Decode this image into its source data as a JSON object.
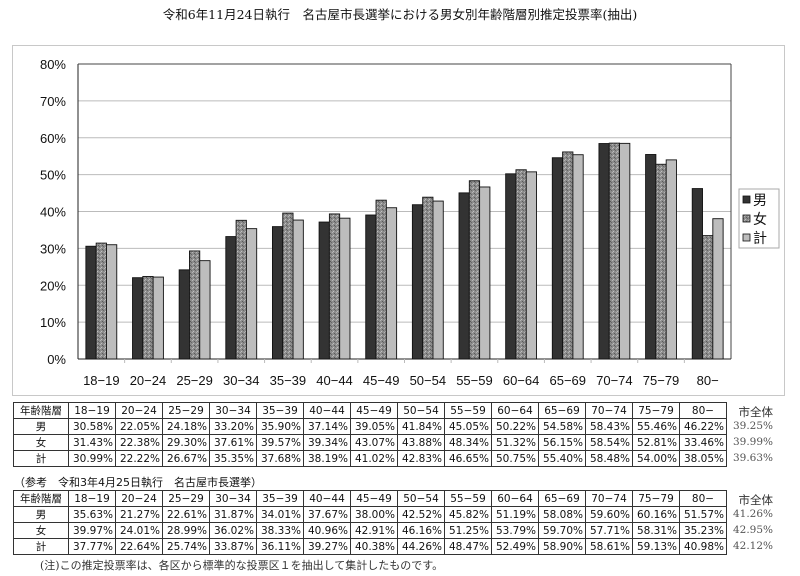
{
  "title": "令和6年11月24日執行　名古屋市長選挙における男女別年齢階層別推定投票率(抽出)",
  "chart_data": {
    "type": "bar",
    "title": "令和6年11月24日執行　名古屋市長選挙における男女別年齢階層別推定投票率(抽出)",
    "categories": [
      "18-19",
      "20-24",
      "25-29",
      "30-34",
      "35-39",
      "40-44",
      "45-49",
      "50-54",
      "55-59",
      "60-64",
      "65-69",
      "70-74",
      "75-79",
      "80-"
    ],
    "series": [
      {
        "name": "男",
        "color": "#333333",
        "values": [
          30.58,
          22.05,
          24.18,
          33.2,
          35.9,
          37.14,
          39.05,
          41.84,
          45.05,
          50.22,
          54.58,
          58.43,
          55.46,
          46.22
        ]
      },
      {
        "name": "女",
        "color": "#8c8c8c",
        "values": [
          31.43,
          22.38,
          29.3,
          37.61,
          39.57,
          39.34,
          43.07,
          43.88,
          48.34,
          51.32,
          56.15,
          58.54,
          52.81,
          33.46
        ]
      },
      {
        "name": "計",
        "color": "#bdbdbd",
        "values": [
          30.99,
          22.22,
          26.67,
          35.35,
          37.68,
          38.19,
          41.02,
          42.83,
          46.65,
          50.75,
          55.4,
          58.48,
          54.0,
          38.05
        ]
      }
    ],
    "xlabel": "",
    "ylabel": "",
    "ylim": [
      0,
      80
    ],
    "yticks": [
      "0%",
      "10%",
      "20%",
      "30%",
      "40%",
      "50%",
      "60%",
      "70%",
      "80%"
    ],
    "grid": true,
    "legend_position": "right"
  },
  "table_current": {
    "header_label": "年齢階層",
    "columns": [
      "18-19",
      "20-24",
      "25-29",
      "30-34",
      "35-39",
      "40-44",
      "45-49",
      "50-54",
      "55-59",
      "60-64",
      "65-69",
      "70-74",
      "75-79",
      "80-"
    ],
    "total_header": "市全体",
    "rows": [
      {
        "label": "男",
        "values": [
          "30.58%",
          "22.05%",
          "24.18%",
          "33.20%",
          "35.90%",
          "37.14%",
          "39.05%",
          "41.84%",
          "45.05%",
          "50.22%",
          "54.58%",
          "58.43%",
          "55.46%",
          "46.22%"
        ],
        "total": "39.25%"
      },
      {
        "label": "女",
        "values": [
          "31.43%",
          "22.38%",
          "29.30%",
          "37.61%",
          "39.57%",
          "39.34%",
          "43.07%",
          "43.88%",
          "48.34%",
          "51.32%",
          "56.15%",
          "58.54%",
          "52.81%",
          "33.46%"
        ],
        "total": "39.99%"
      },
      {
        "label": "計",
        "values": [
          "30.99%",
          "22.22%",
          "26.67%",
          "35.35%",
          "37.68%",
          "38.19%",
          "41.02%",
          "42.83%",
          "46.65%",
          "50.75%",
          "55.40%",
          "58.48%",
          "54.00%",
          "38.05%"
        ],
        "total": "39.63%"
      }
    ]
  },
  "table_reference": {
    "caption": "（参考　令和3年4月25日執行　名古屋市長選挙）",
    "header_label": "年齢階層",
    "columns": [
      "18-19",
      "20-24",
      "25-29",
      "30-34",
      "35-39",
      "40-44",
      "45-49",
      "50-54",
      "55-59",
      "60-64",
      "65-69",
      "70-74",
      "75-79",
      "80-"
    ],
    "total_header": "市全体",
    "rows": [
      {
        "label": "男",
        "values": [
          "35.63%",
          "21.27%",
          "22.61%",
          "31.87%",
          "34.01%",
          "37.67%",
          "38.00%",
          "42.52%",
          "45.82%",
          "51.19%",
          "58.08%",
          "59.60%",
          "60.16%",
          "51.57%"
        ],
        "total": "41.26%"
      },
      {
        "label": "女",
        "values": [
          "39.97%",
          "24.01%",
          "28.99%",
          "36.02%",
          "38.33%",
          "40.96%",
          "42.91%",
          "46.16%",
          "51.25%",
          "53.79%",
          "59.70%",
          "57.71%",
          "58.31%",
          "35.23%"
        ],
        "total": "42.95%"
      },
      {
        "label": "計",
        "values": [
          "37.77%",
          "22.64%",
          "25.74%",
          "33.87%",
          "36.11%",
          "39.27%",
          "40.38%",
          "44.26%",
          "48.47%",
          "52.49%",
          "58.90%",
          "58.61%",
          "59.13%",
          "40.98%"
        ],
        "total": "42.12%"
      }
    ]
  },
  "note": "(注)この推定投票率は、各区から標準的な投票区１を抽出して集計したものです。"
}
